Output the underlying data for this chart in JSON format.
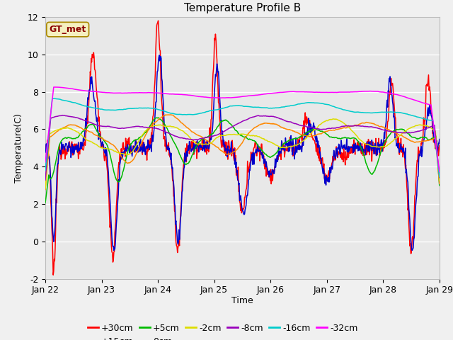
{
  "title": "Temperature Profile B",
  "xlabel": "Time",
  "ylabel": "Temperature(C)",
  "annotation": "GT_met",
  "ylim": [
    -2,
    12
  ],
  "yticks": [
    -2,
    0,
    2,
    4,
    6,
    8,
    10,
    12
  ],
  "date_labels": [
    "Jan 22",
    "Jan 23",
    "Jan 24",
    "Jan 25",
    "Jan 26",
    "Jan 27",
    "Jan 28",
    "Jan 29"
  ],
  "series_colors": {
    "+30cm": "#ff0000",
    "+15cm": "#0000cc",
    "+5cm": "#00bb00",
    "0cm": "#ff8800",
    "-2cm": "#dddd00",
    "-8cm": "#9900bb",
    "-16cm": "#00cccc",
    "-32cm": "#ff00ff"
  },
  "fig_bg": "#f0f0f0",
  "plot_bg": "#e8e8e8",
  "grid_color": "#ffffff",
  "title_fontsize": 11,
  "axis_fontsize": 9,
  "tick_fontsize": 9,
  "legend_fontsize": 9
}
